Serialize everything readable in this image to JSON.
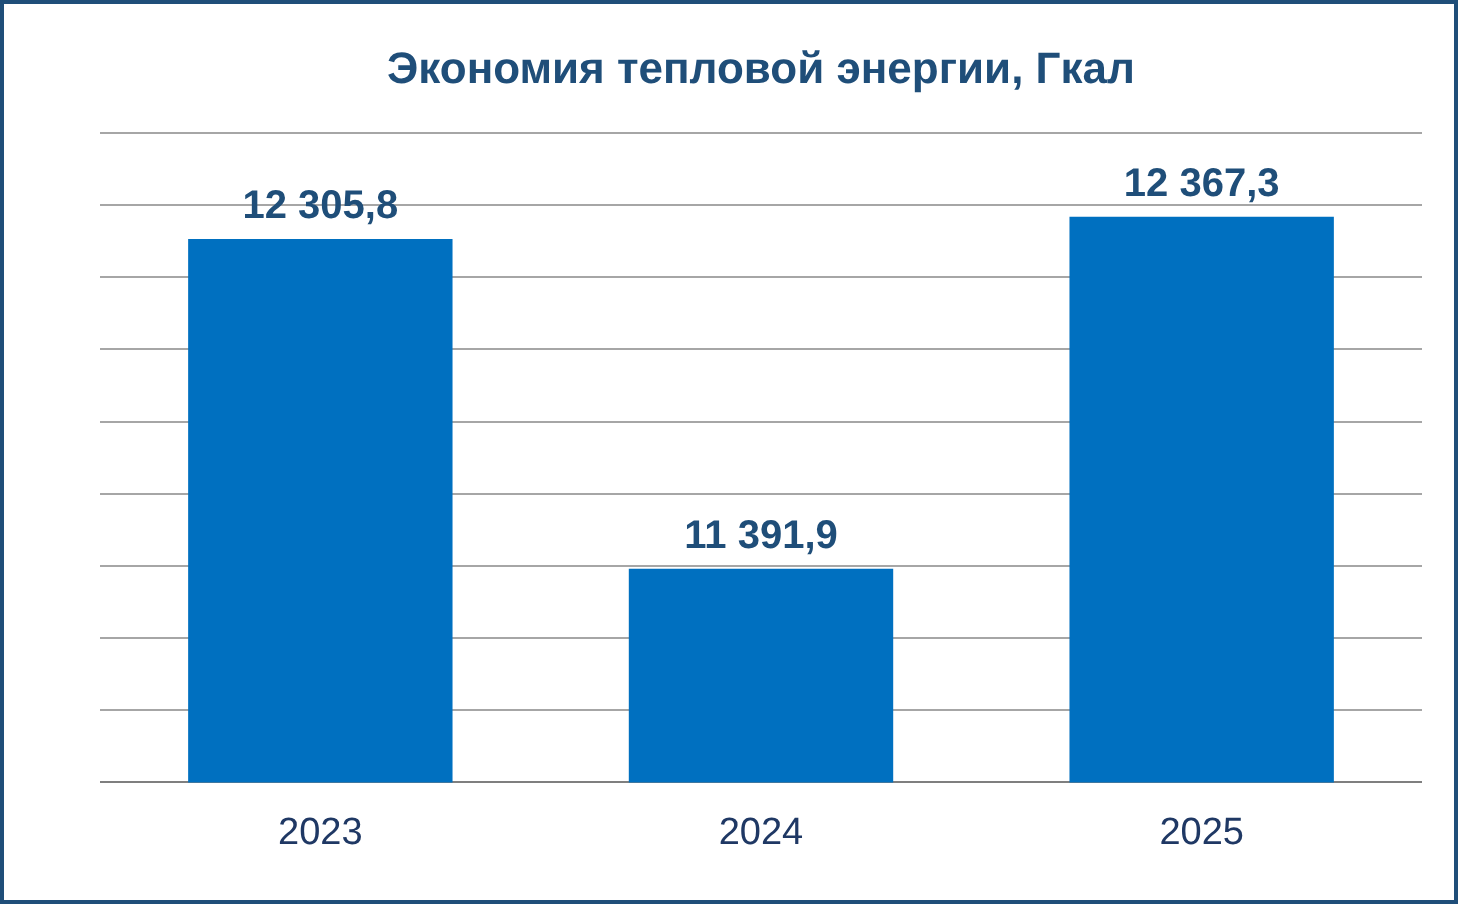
{
  "chart_data": {
    "type": "bar",
    "title": "Экономия тепловой энергии, Гкал",
    "categories": [
      "2023",
      "2024",
      "2025"
    ],
    "values": [
      12305.8,
      11391.9,
      12367.3
    ],
    "value_labels": [
      "12 305,8",
      "11 391,9",
      "12 367,3"
    ],
    "color": "#0070c0",
    "ylim": [
      10800,
      12600
    ],
    "yticks": [
      {
        "value": 10800,
        "label": null
      },
      {
        "value": 11000,
        "label": null
      },
      {
        "value": 11200,
        "label": null
      },
      {
        "value": 11400,
        "label": null
      },
      {
        "value": 11600,
        "label": null
      },
      {
        "value": 11800,
        "label": null
      },
      {
        "value": 12000,
        "label": null
      },
      {
        "value": 12200,
        "label": null
      },
      {
        "value": 12400,
        "label": null
      },
      {
        "value": 12600,
        "label": null
      }
    ],
    "tick_labels": "x",
    "grid": "y",
    "legend": false
  }
}
